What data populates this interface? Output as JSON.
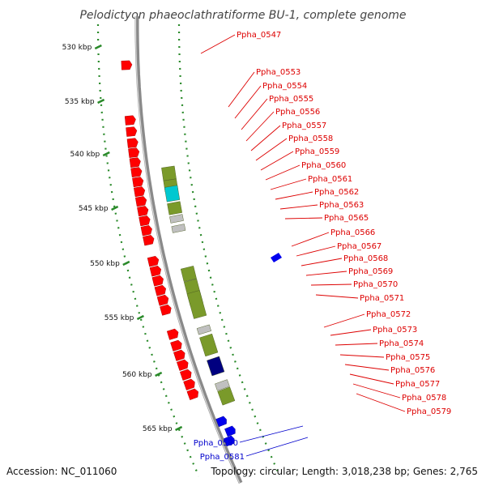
{
  "title": "Pelodictyon phaeoclathratiforme BU-1, complete genome",
  "footer": {
    "accession": "Accession: NC_011060",
    "summary": "Topology: circular; Length: 3,018,238 bp; Genes: 2,765"
  },
  "colors": {
    "backbone": "#8a8a8a",
    "forward_gene": "#ff0000",
    "reverse_gene": "#0000ee",
    "olive_feature": "#7a9a2a",
    "cyan_feature": "#00c8d0",
    "gray_feature": "#c0c0c0",
    "navy_feature": "#000080",
    "tick": "#2a8a2a",
    "forward_label": "#dd0000",
    "reverse_label": "#0000cc"
  },
  "ticks": [
    "530 kbp",
    "535 kbp",
    "540 kbp",
    "545 kbp",
    "550 kbp",
    "555 kbp",
    "560 kbp",
    "565 kbp"
  ],
  "forward_labels": [
    "Ppha_0547",
    "Ppha_0553",
    "Ppha_0554",
    "Ppha_0555",
    "Ppha_0556",
    "Ppha_0557",
    "Ppha_0558",
    "Ppha_0559",
    "Ppha_0560",
    "Ppha_0561",
    "Ppha_0562",
    "Ppha_0563",
    "Ppha_0565",
    "Ppha_0566",
    "Ppha_0567",
    "Ppha_0568",
    "Ppha_0569",
    "Ppha_0570",
    "Ppha_0571",
    "Ppha_0572",
    "Ppha_0573",
    "Ppha_0574",
    "Ppha_0575",
    "Ppha_0576",
    "Ppha_0577",
    "Ppha_0578",
    "Ppha_0579"
  ],
  "reverse_labels": [
    "Ppha_0580",
    "Ppha_0581"
  ]
}
